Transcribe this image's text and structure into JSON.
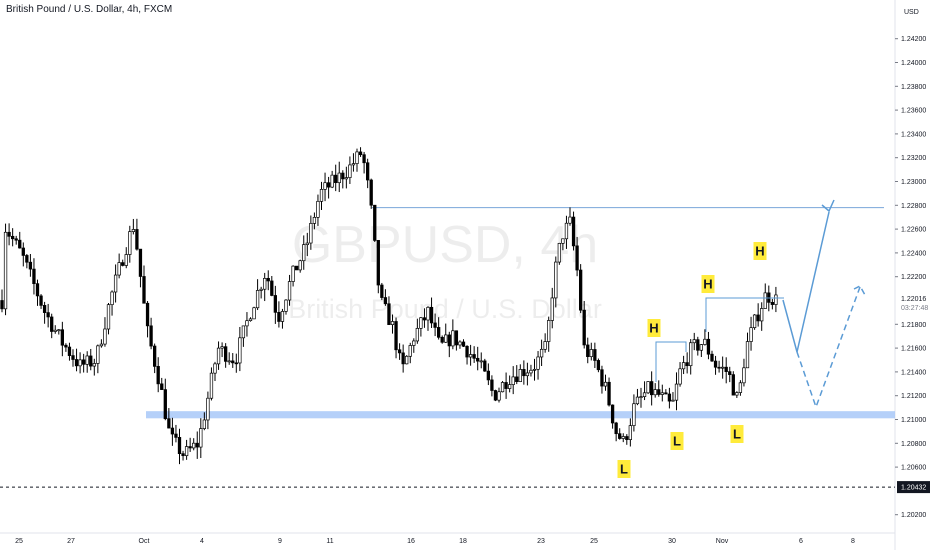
{
  "chart_data": {
    "type": "candlestick",
    "title": "British Pound / U.S. Dollar, 4h, FXCM",
    "watermark": {
      "symbol": "GBPUSD, 4h",
      "name": "British Pound / U.S. Dollar"
    },
    "currency": "USD",
    "y_axis": {
      "ticks": [
        "1.24200",
        "1.24000",
        "1.23800",
        "1.23600",
        "1.23400",
        "1.23200",
        "1.23000",
        "1.22800",
        "1.22600",
        "1.22400",
        "1.22200",
        "1.21800",
        "1.21600",
        "1.21400",
        "1.21200",
        "1.21000",
        "1.20800",
        "1.20600",
        "1.20200"
      ],
      "range": [
        1.2005,
        1.2445
      ]
    },
    "x_axis": {
      "ticks": [
        "25",
        "27",
        "Oct",
        "4",
        "9",
        "11",
        "16",
        "18",
        "23",
        "25",
        "30",
        "Nov",
        "6",
        "8"
      ]
    },
    "last_price": {
      "value": "1.22016",
      "countdown": "03:27:48"
    },
    "low_marker": {
      "value": "1.20432"
    },
    "support_zone": {
      "top": 1.2107,
      "bottom": 1.2101
    },
    "resistance_line": {
      "value": 1.2278
    },
    "swing_labels": [
      {
        "text": "H"
      },
      {
        "text": "H"
      },
      {
        "text": "H"
      },
      {
        "text": "L"
      },
      {
        "text": "L"
      },
      {
        "text": "L"
      }
    ],
    "colors": {
      "up": "#ffffff",
      "down": "#000000",
      "zone": "#a8c8f8",
      "projection": "#5b9bd5",
      "label_bg": "#ffeb3b"
    }
  }
}
